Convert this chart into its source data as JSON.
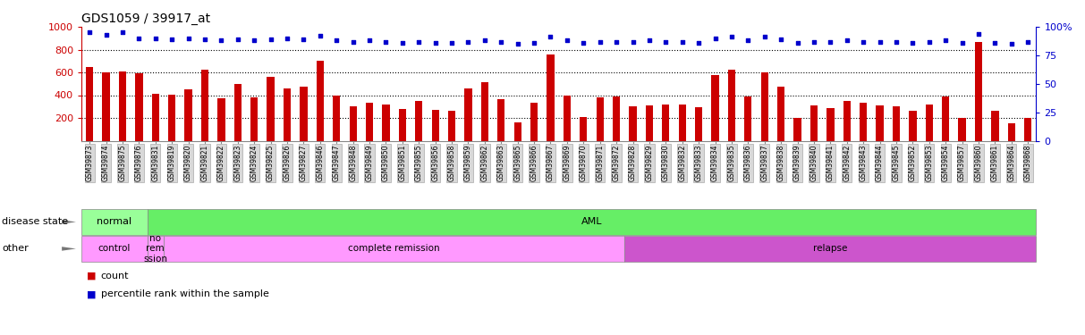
{
  "title": "GDS1059 / 39917_at",
  "samples": [
    "GSM39873",
    "GSM39874",
    "GSM39875",
    "GSM39876",
    "GSM39831",
    "GSM39819",
    "GSM39820",
    "GSM39821",
    "GSM39822",
    "GSM39823",
    "GSM39824",
    "GSM39825",
    "GSM39826",
    "GSM39827",
    "GSM39846",
    "GSM39847",
    "GSM39848",
    "GSM39849",
    "GSM39850",
    "GSM39851",
    "GSM39855",
    "GSM39856",
    "GSM39858",
    "GSM39859",
    "GSM39862",
    "GSM39863",
    "GSM39865",
    "GSM39866",
    "GSM39867",
    "GSM39869",
    "GSM39870",
    "GSM39871",
    "GSM39872",
    "GSM39828",
    "GSM39829",
    "GSM39830",
    "GSM39832",
    "GSM39833",
    "GSM39834",
    "GSM39835",
    "GSM39836",
    "GSM39837",
    "GSM39838",
    "GSM39839",
    "GSM39840",
    "GSM39841",
    "GSM39842",
    "GSM39843",
    "GSM39844",
    "GSM39845",
    "GSM39852",
    "GSM39853",
    "GSM39854",
    "GSM39857",
    "GSM39860",
    "GSM39861",
    "GSM39864",
    "GSM39868"
  ],
  "counts": [
    650,
    600,
    605,
    590,
    410,
    405,
    450,
    620,
    375,
    495,
    380,
    560,
    455,
    475,
    700,
    400,
    300,
    330,
    320,
    275,
    350,
    270,
    265,
    460,
    510,
    365,
    160,
    330,
    760,
    395,
    210,
    380,
    390,
    300,
    310,
    315,
    320,
    295,
    580,
    620,
    385,
    600,
    475,
    200,
    310,
    290,
    350,
    330,
    310,
    300,
    265,
    320,
    390,
    200,
    870,
    260,
    150,
    200
  ],
  "percentiles": [
    95,
    93,
    95,
    90,
    90,
    89,
    90,
    89,
    88,
    89,
    88,
    89,
    90,
    89,
    92,
    88,
    87,
    88,
    87,
    86,
    87,
    86,
    86,
    87,
    88,
    87,
    85,
    86,
    91,
    88,
    86,
    87,
    87,
    87,
    88,
    87,
    87,
    86,
    90,
    91,
    88,
    91,
    89,
    86,
    87,
    87,
    88,
    87,
    87,
    87,
    86,
    87,
    88,
    86,
    94,
    86,
    85,
    87
  ],
  "bar_color": "#cc0000",
  "dot_color": "#0000cc",
  "ylim_left": [
    0,
    1000
  ],
  "ylim_right": [
    0,
    100
  ],
  "yticks_left": [
    200,
    400,
    600,
    800,
    1000
  ],
  "yticks_right": [
    0,
    25,
    50,
    75,
    100
  ],
  "grid_values": [
    200,
    400,
    600,
    800
  ],
  "disease_state_groups": [
    {
      "label": "normal",
      "start": 0,
      "end": 4,
      "color": "#99ff99"
    },
    {
      "label": "AML",
      "start": 4,
      "end": 58,
      "color": "#66ee66"
    }
  ],
  "other_groups": [
    {
      "label": "control",
      "start": 0,
      "end": 4,
      "color": "#ff99ff"
    },
    {
      "label": "no\nrem\nssion",
      "start": 4,
      "end": 5,
      "color": "#ff99ff"
    },
    {
      "label": "complete remission",
      "start": 5,
      "end": 33,
      "color": "#ff99ff"
    },
    {
      "label": "relapse",
      "start": 33,
      "end": 58,
      "color": "#cc55cc"
    }
  ],
  "row_label_disease": "disease state",
  "row_label_other": "other",
  "legend_count_color": "#cc0000",
  "legend_pct_color": "#0000cc",
  "legend_count_label": "count",
  "legend_pct_label": "percentile rank within the sample"
}
